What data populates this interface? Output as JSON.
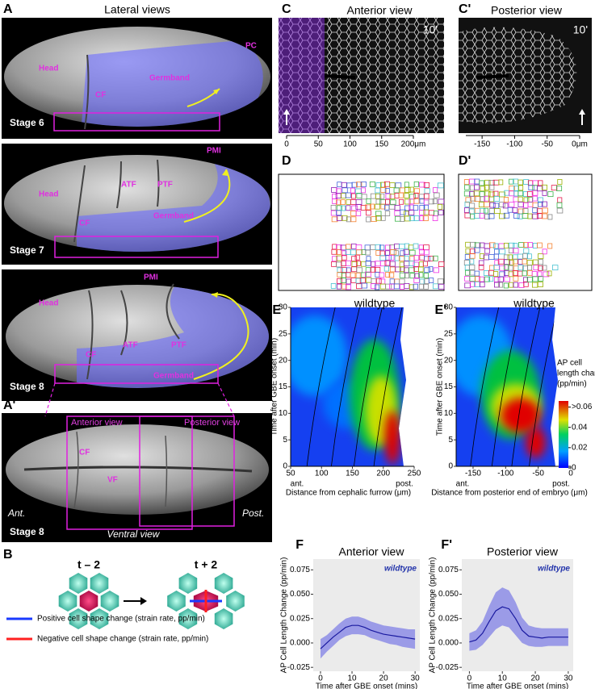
{
  "panels": {
    "A": {
      "label": "A",
      "title": "Lateral views",
      "stages": [
        {
          "stage": "Stage 6",
          "labels": [
            "Head",
            "CF",
            "Germband",
            "PC"
          ]
        },
        {
          "stage": "Stage 7",
          "labels": [
            "PMI",
            "Head",
            "ATF",
            "PTF",
            "CF",
            "Germband"
          ]
        },
        {
          "stage": "Stage 8",
          "labels": [
            "PMI",
            "Head",
            "CF",
            "ATF",
            "PTF",
            "Germband"
          ]
        }
      ]
    },
    "A_prime": {
      "label": "A'",
      "boxes": [
        "Anterior view",
        "Posterior view"
      ],
      "labels": [
        "CF",
        "VF"
      ],
      "ant": "Ant.",
      "post": "Post.",
      "stage": "Stage 8",
      "view": "Ventral view"
    },
    "B": {
      "label": "B",
      "before": "t – 2",
      "after": "t + 2",
      "legend": [
        "Positive cell shape change (strain rate, pp/min)",
        "Negative cell shape change (strain rate, pp/min)"
      ]
    },
    "C": {
      "label": "C",
      "title": "Anterior view",
      "time": "10'",
      "scale": {
        "xlim": [
          0,
          200
        ],
        "xticks": [
          0,
          50,
          100,
          150,
          {
            "value": 200,
            "label": "200μm"
          }
        ]
      }
    },
    "C_prime": {
      "label": "C'",
      "title": "Posterior view",
      "time": "10'",
      "scale": {
        "xlim": [
          -175,
          0
        ],
        "xticks": [
          -150,
          -100,
          -50,
          {
            "value": 0,
            "label": "0μm"
          }
        ]
      }
    },
    "D": {
      "label": "D"
    },
    "D_prime": {
      "label": "D'"
    }
  },
  "chart_data": [
    {
      "type": "heatmap",
      "panel": "E",
      "title": "wildtype",
      "ylabel": "Time after GBE onset (min)",
      "xlabel": "Distance from cephalic furrow (μm)",
      "x_ends": [
        "ant.",
        "post."
      ],
      "xlim": [
        50,
        250
      ],
      "ylim": [
        0,
        30
      ],
      "xticks": [
        50,
        100,
        150,
        200,
        250
      ],
      "yticks": [
        0,
        5,
        10,
        15,
        20,
        25,
        30
      ]
    },
    {
      "type": "heatmap",
      "panel": "E'",
      "title": "wildtype",
      "ylabel": "Time after GBE onset (min)",
      "xlabel": "Distance from posterior end of embryo (μm)",
      "x_ends": [
        "ant.",
        "post."
      ],
      "xlim": [
        -176,
        0
      ],
      "ylim": [
        0,
        30
      ],
      "xticks": [
        -150,
        -100,
        -50,
        0
      ],
      "yticks": [
        0,
        5,
        10,
        15,
        20,
        25,
        30
      ],
      "colorbar": {
        "label": [
          "AP cell",
          "length change",
          "(pp/min)"
        ],
        "lim": [
          0,
          0.066
        ],
        "ticks": [
          {
            "value": 0.06,
            "label": ">0.06"
          },
          0.04,
          0.02,
          0
        ]
      }
    },
    {
      "type": "line",
      "panel": "F",
      "title": "Anterior view",
      "annotation": "wildtype",
      "ylabel": "AP Cell Length Change (pp/min)",
      "xlabel": "Time after GBE onset (mins)",
      "x": [
        0,
        2,
        4,
        6,
        8,
        10,
        12,
        14,
        16,
        18,
        20,
        22,
        24,
        26,
        28,
        30
      ],
      "series": [
        {
          "color": "#1a1aa0",
          "band_color": "#8080e6",
          "values": [
            -0.006,
            0.0,
            0.006,
            0.011,
            0.016,
            0.018,
            0.018,
            0.016,
            0.013,
            0.011,
            0.009,
            0.008,
            0.007,
            0.006,
            0.005,
            0.004
          ],
          "lower": [
            -0.016,
            -0.009,
            -0.003,
            0.003,
            0.007,
            0.009,
            0.009,
            0.008,
            0.005,
            0.003,
            0.001,
            -0.001,
            -0.002,
            -0.004,
            -0.005,
            -0.006
          ],
          "upper": [
            0.004,
            0.008,
            0.014,
            0.02,
            0.025,
            0.027,
            0.027,
            0.025,
            0.022,
            0.02,
            0.018,
            0.017,
            0.016,
            0.015,
            0.014,
            0.014
          ]
        }
      ],
      "xlim": [
        -2.3,
        31.5
      ],
      "ylim": [
        -0.029,
        0.086
      ],
      "xticks": [
        0,
        10,
        20,
        30
      ],
      "yticks": [
        {
          "value": -0.025,
          "label": "-0.025"
        },
        {
          "value": 0,
          "label": "0.000"
        },
        {
          "value": 0.025,
          "label": "0.025"
        },
        {
          "value": 0.05,
          "label": "0.050"
        },
        {
          "value": 0.075,
          "label": "0.075"
        }
      ],
      "grid": true
    },
    {
      "type": "line",
      "panel": "F'",
      "title": "Posterior view",
      "annotation": "wildtype",
      "ylabel": "AP Cell Length Change (pp/min)",
      "xlabel": "Time after GBE onset (mins)",
      "x": [
        0,
        2,
        4,
        6,
        8,
        10,
        12,
        14,
        16,
        18,
        20,
        22,
        24,
        26,
        28,
        30
      ],
      "series": [
        {
          "color": "#1a1aa0",
          "band_color": "#8080e6",
          "values": [
            0.001,
            0.003,
            0.01,
            0.022,
            0.033,
            0.037,
            0.035,
            0.025,
            0.013,
            0.007,
            0.006,
            0.005,
            0.006,
            0.006,
            0.006,
            0.006
          ],
          "lower": [
            -0.008,
            -0.007,
            -0.002,
            0.006,
            0.014,
            0.018,
            0.016,
            0.008,
            0.0,
            -0.003,
            -0.004,
            -0.004,
            -0.003,
            -0.003,
            -0.003,
            -0.003
          ],
          "upper": [
            0.01,
            0.013,
            0.022,
            0.038,
            0.052,
            0.057,
            0.054,
            0.042,
            0.026,
            0.018,
            0.016,
            0.015,
            0.015,
            0.015,
            0.015,
            0.015
          ]
        }
      ],
      "xlim": [
        -2.3,
        31.5
      ],
      "ylim": [
        -0.029,
        0.086
      ],
      "xticks": [
        0,
        10,
        20,
        30
      ],
      "yticks": [
        {
          "value": -0.025,
          "label": "-0.025"
        },
        {
          "value": 0,
          "label": "0.000"
        },
        {
          "value": 0.025,
          "label": "0.025"
        },
        {
          "value": 0.05,
          "label": "0.050"
        },
        {
          "value": 0.075,
          "label": "0.075"
        }
      ],
      "grid": true
    }
  ]
}
